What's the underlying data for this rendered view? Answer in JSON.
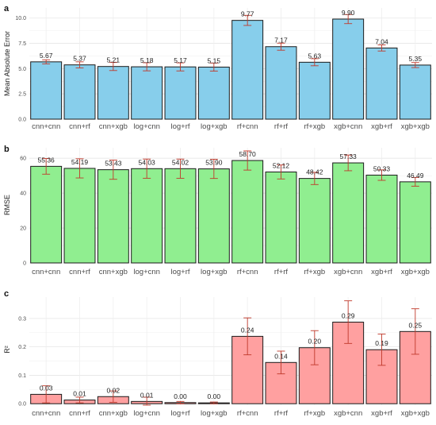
{
  "chart_data": [
    {
      "panel": "a",
      "type": "bar",
      "ylabel": "Mean Absolute Error",
      "categories": [
        "cnn+cnn",
        "cnn+rf",
        "cnn+xgb",
        "log+cnn",
        "log+rf",
        "log+xgb",
        "rf+cnn",
        "rf+rf",
        "rf+xgb",
        "xgb+cnn",
        "xgb+rf",
        "xgb+xgb"
      ],
      "values": [
        5.67,
        5.37,
        5.21,
        5.18,
        5.17,
        5.15,
        9.77,
        7.17,
        5.63,
        9.9,
        7.04,
        5.35
      ],
      "value_labels": [
        "5.67",
        "5.37",
        "5.21",
        "5.18",
        "5.17",
        "5.15",
        "9.77",
        "7.17",
        "5.63",
        "9.90",
        "7.04",
        "5.35"
      ],
      "errors": [
        0.2,
        0.3,
        0.4,
        0.4,
        0.4,
        0.4,
        0.5,
        0.35,
        0.35,
        0.45,
        0.3,
        0.25
      ],
      "ylim": [
        0,
        11
      ],
      "yticks": [
        "0.0",
        "2.5",
        "5.0",
        "7.5",
        "10.0"
      ],
      "ytick_values": [
        0,
        2.5,
        5,
        7.5,
        10
      ],
      "color": "#87CEEB"
    },
    {
      "panel": "b",
      "type": "bar",
      "ylabel": "RMSE",
      "categories": [
        "cnn+cnn",
        "cnn+rf",
        "cnn+xgb",
        "log+cnn",
        "log+rf",
        "log+xgb",
        "rf+cnn",
        "rf+rf",
        "rf+xgb",
        "xgb+cnn",
        "xgb+rf",
        "xgb+xgb"
      ],
      "values": [
        55.36,
        54.19,
        53.43,
        54.03,
        54.02,
        53.9,
        58.7,
        52.12,
        48.42,
        57.33,
        50.33,
        46.49
      ],
      "value_labels": [
        "55.36",
        "54.19",
        "53.43",
        "54.03",
        "54.02",
        "53.90",
        "58.70",
        "52.12",
        "48.42",
        "57.33",
        "50.33",
        "46.49"
      ],
      "errors": [
        4.5,
        5.5,
        5.5,
        5.5,
        5.5,
        5.5,
        5.5,
        4,
        3.5,
        4.5,
        3,
        2.5
      ],
      "ylim": [
        0,
        66
      ],
      "yticks": [
        "0",
        "20",
        "40",
        "60"
      ],
      "ytick_values": [
        0,
        20,
        40,
        60
      ],
      "color": "#90EE90"
    },
    {
      "panel": "c",
      "type": "bar",
      "ylabel": "R²",
      "categories": [
        "cnn+cnn",
        "cnn+rf",
        "cnn+xgb",
        "log+cnn",
        "log+rf",
        "log+xgb",
        "rf+cnn",
        "rf+rf",
        "rf+xgb",
        "xgb+cnn",
        "xgb+rf",
        "xgb+xgb"
      ],
      "values": [
        0.033,
        0.013,
        0.025,
        0.008,
        0.004,
        0.003,
        0.237,
        0.145,
        0.197,
        0.287,
        0.19,
        0.254
      ],
      "value_labels": [
        "0.03",
        "0.01",
        "0.02",
        "0.01",
        "0.00",
        "0.00",
        "0.24",
        "0.14",
        "0.20",
        "0.29",
        "0.19",
        "0.25"
      ],
      "errors": [
        0.03,
        0.01,
        0.02,
        0.015,
        0.004,
        0.003,
        0.065,
        0.04,
        0.06,
        0.075,
        0.055,
        0.08
      ],
      "ylim": [
        -0.005,
        0.375
      ],
      "yticks": [
        "0.0",
        "0.1",
        "0.2",
        "0.3"
      ],
      "ytick_values": [
        0,
        0.1,
        0.2,
        0.3
      ],
      "color": "#FFA0A0"
    }
  ]
}
